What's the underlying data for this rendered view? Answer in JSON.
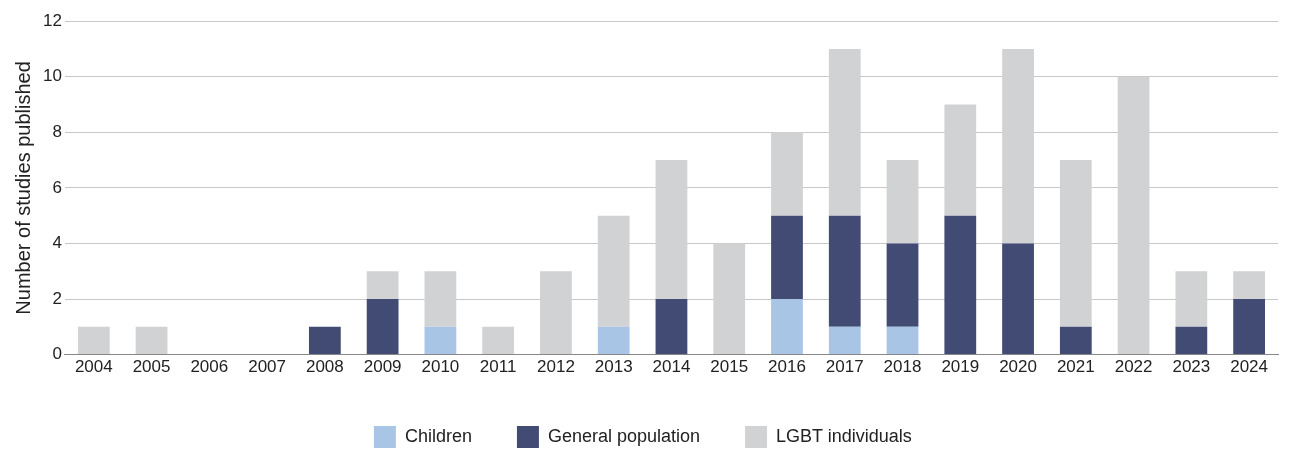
{
  "chart_data": {
    "type": "bar",
    "stacked": true,
    "ylabel": "Number of studies published",
    "categories": [
      "2004",
      "2005",
      "2006",
      "2007",
      "2008",
      "2009",
      "2010",
      "2011",
      "2012",
      "2013",
      "2014",
      "2015",
      "2016",
      "2017",
      "2018",
      "2019",
      "2020",
      "2021",
      "2022",
      "2023",
      "2024"
    ],
    "series": [
      {
        "name": "Children",
        "color": "#a9c5e6",
        "values": [
          0,
          0,
          0,
          0,
          0,
          0,
          1,
          0,
          0,
          1,
          0,
          0,
          2,
          1,
          1,
          0,
          0,
          0,
          0,
          0,
          0
        ]
      },
      {
        "name": "General population",
        "color": "#414b74",
        "values": [
          0,
          0,
          0,
          0,
          1,
          2,
          0,
          0,
          0,
          0,
          2,
          0,
          3,
          4,
          3,
          5,
          4,
          1,
          0,
          1,
          2
        ]
      },
      {
        "name": "LGBT individuals",
        "color": "#d1d2d4",
        "values": [
          1,
          1,
          0,
          0,
          0,
          1,
          2,
          1,
          3,
          4,
          5,
          4,
          3,
          6,
          3,
          4,
          7,
          6,
          10,
          2,
          1
        ]
      }
    ],
    "ylim": [
      0,
      12
    ],
    "yticks": [
      0,
      2,
      4,
      6,
      8,
      10,
      12
    ],
    "grid": "y",
    "legend": "bottom"
  }
}
